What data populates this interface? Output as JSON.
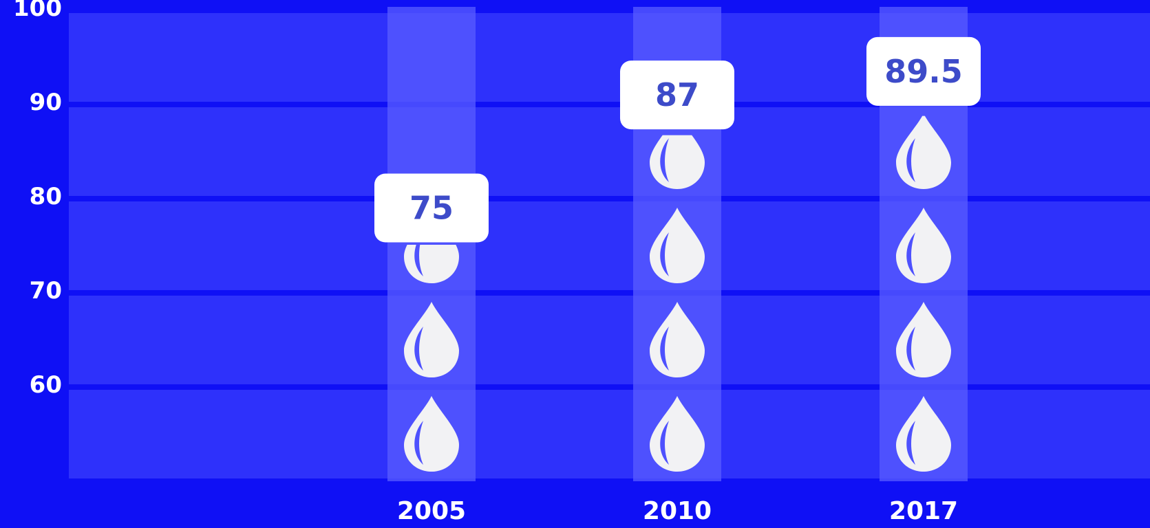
{
  "colors": {
    "background": "#0f10f5",
    "band": "#2e31fb",
    "column_highlight": "#5a5cff",
    "drop": "#f2f2f4",
    "label_box": "#ffffff",
    "label_text": "#3d4bc9",
    "text": "#ffffff"
  },
  "icons": {
    "marker": "water-drop-icon"
  },
  "chart_data": {
    "type": "bar",
    "title": "",
    "xlabel": "",
    "ylabel": "",
    "ylim": [
      50,
      100
    ],
    "yticks": [
      "60",
      "70",
      "80",
      "90",
      "100"
    ],
    "grid": true,
    "categories": [
      "2005",
      "2010",
      "2017"
    ],
    "values": [
      75,
      87,
      89.5
    ],
    "value_labels": [
      "75",
      "87",
      "89.5"
    ]
  }
}
